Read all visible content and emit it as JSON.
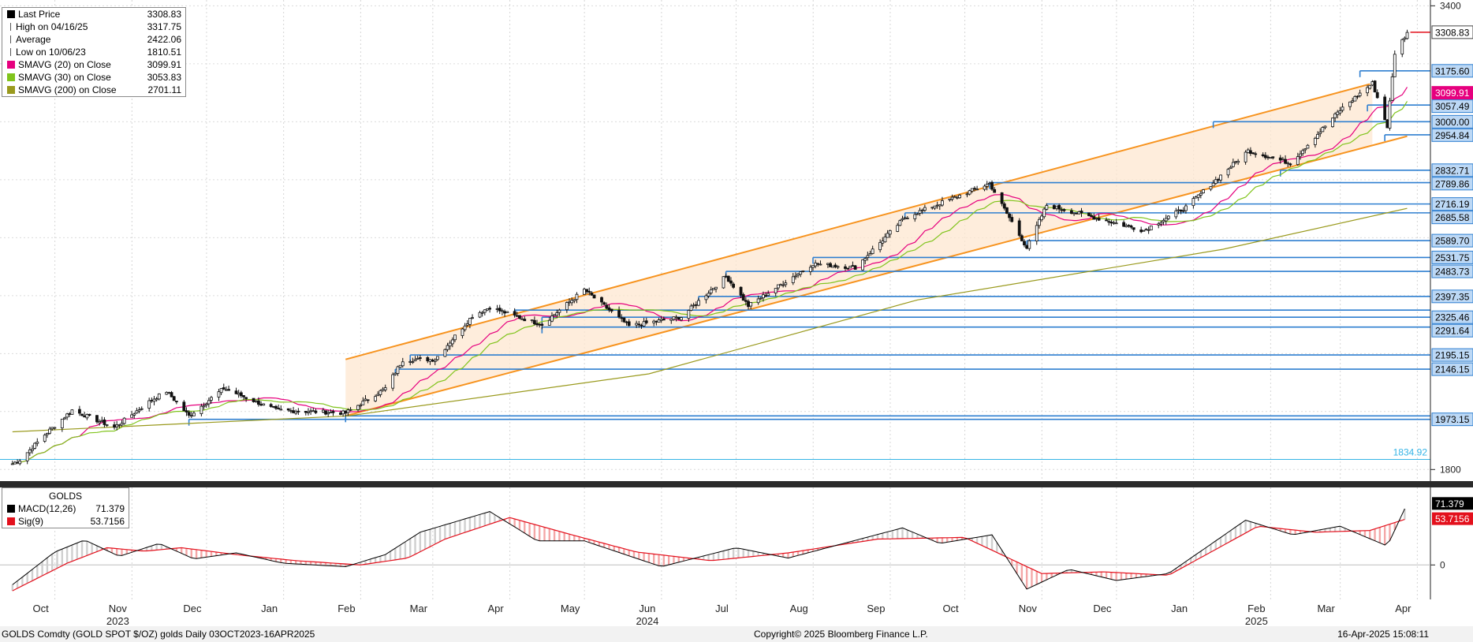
{
  "chart_data": [
    {
      "type": "candlestick",
      "title": "GOLDS",
      "ylim": [
        1760,
        3420
      ],
      "y_ticks": [
        1800,
        3400
      ],
      "y_tick_labels": [
        "1800",
        "3400"
      ],
      "x_date_range": [
        "2023-10-03",
        "2025-04-16"
      ],
      "month_ticks": [
        {
          "date": "2023-10-15",
          "label": "Oct",
          "year": ""
        },
        {
          "date": "2023-11-15",
          "label": "Nov",
          "year": "2023"
        },
        {
          "date": "2023-12-15",
          "label": "Dec",
          "year": ""
        },
        {
          "date": "2024-01-15",
          "label": "Jan",
          "year": ""
        },
        {
          "date": "2024-02-15",
          "label": "Feb",
          "year": ""
        },
        {
          "date": "2024-03-15",
          "label": "Mar",
          "year": ""
        },
        {
          "date": "2024-04-15",
          "label": "Apr",
          "year": ""
        },
        {
          "date": "2024-05-15",
          "label": "May",
          "year": ""
        },
        {
          "date": "2024-06-15",
          "label": "Jun",
          "year": "2024"
        },
        {
          "date": "2024-07-15",
          "label": "Jul",
          "year": ""
        },
        {
          "date": "2024-08-15",
          "label": "Aug",
          "year": ""
        },
        {
          "date": "2024-09-15",
          "label": "Sep",
          "year": ""
        },
        {
          "date": "2024-10-15",
          "label": "Oct",
          "year": ""
        },
        {
          "date": "2024-11-15",
          "label": "Nov",
          "year": ""
        },
        {
          "date": "2024-12-15",
          "label": "Dec",
          "year": ""
        },
        {
          "date": "2025-01-15",
          "label": "Jan",
          "year": ""
        },
        {
          "date": "2025-02-15",
          "label": "Feb",
          "year": "2025"
        },
        {
          "date": "2025-03-15",
          "label": "Mar",
          "year": ""
        },
        {
          "date": "2025-04-15",
          "label": "Apr",
          "year": ""
        }
      ],
      "price_path": [
        {
          "date": "2023-10-03",
          "close": 1820
        },
        {
          "date": "2023-10-06",
          "close": 1833
        },
        {
          "date": "2023-10-16",
          "close": 1920
        },
        {
          "date": "2023-10-27",
          "close": 2005
        },
        {
          "date": "2023-11-13",
          "close": 1945
        },
        {
          "date": "2023-11-28",
          "close": 2040
        },
        {
          "date": "2023-12-04",
          "close": 2070
        },
        {
          "date": "2023-12-13",
          "close": 1985
        },
        {
          "date": "2023-12-27",
          "close": 2080
        },
        {
          "date": "2024-01-17",
          "close": 2005
        },
        {
          "date": "2024-02-14",
          "close": 1995
        },
        {
          "date": "2024-03-01",
          "close": 2080
        },
        {
          "date": "2024-03-08",
          "close": 2178
        },
        {
          "date": "2024-03-21",
          "close": 2180
        },
        {
          "date": "2024-04-05",
          "close": 2330
        },
        {
          "date": "2024-04-12",
          "close": 2360
        },
        {
          "date": "2024-04-22",
          "close": 2330
        },
        {
          "date": "2024-05-03",
          "close": 2300
        },
        {
          "date": "2024-05-20",
          "close": 2420
        },
        {
          "date": "2024-06-07",
          "close": 2295
        },
        {
          "date": "2024-06-28",
          "close": 2326
        },
        {
          "date": "2024-07-16",
          "close": 2467
        },
        {
          "date": "2024-07-25",
          "close": 2365
        },
        {
          "date": "2024-08-20",
          "close": 2510
        },
        {
          "date": "2024-09-06",
          "close": 2497
        },
        {
          "date": "2024-09-26",
          "close": 2670
        },
        {
          "date": "2024-10-30",
          "close": 2787
        },
        {
          "date": "2024-11-14",
          "close": 2565
        },
        {
          "date": "2024-11-22",
          "close": 2712
        },
        {
          "date": "2024-12-31",
          "close": 2625
        },
        {
          "date": "2025-01-17",
          "close": 2705
        },
        {
          "date": "2025-02-11",
          "close": 2900
        },
        {
          "date": "2025-02-28",
          "close": 2857
        },
        {
          "date": "2025-03-20",
          "close": 3040
        },
        {
          "date": "2025-04-02",
          "close": 3133
        },
        {
          "date": "2025-04-08",
          "close": 2983
        },
        {
          "date": "2025-04-11",
          "close": 3237
        },
        {
          "date": "2025-04-16",
          "close": 3308.83
        }
      ],
      "series": [
        {
          "name": "Last Price",
          "last": 3308.83,
          "color": "#000000"
        },
        {
          "name": "SMAVG (20)  on Close",
          "last": 3099.91,
          "color": "#e6007e"
        },
        {
          "name": "SMAVG (30)  on Close",
          "last": 3053.83,
          "color": "#80c41c"
        },
        {
          "name": "SMAVG (200)  on Close",
          "last": 2701.11,
          "color": "#9a9a1e"
        }
      ],
      "sma200_path": [
        {
          "date": "2023-10-03",
          "value": 1930
        },
        {
          "date": "2024-02-15",
          "value": 1985
        },
        {
          "date": "2024-06-15",
          "value": 2130
        },
        {
          "date": "2024-10-01",
          "value": 2385
        },
        {
          "date": "2025-02-01",
          "value": 2560
        },
        {
          "date": "2025-04-16",
          "value": 2701.11
        }
      ],
      "legend": {
        "position": "top-left",
        "rows": [
          {
            "kind": "square",
            "label": "Last Price",
            "value": "3308.83",
            "color": "#000000"
          },
          {
            "kind": "high",
            "label": "High on 04/16/25",
            "value": "3317.75",
            "color": "#555555"
          },
          {
            "kind": "avg",
            "label": "Average",
            "value": "2422.06",
            "color": "#555555"
          },
          {
            "kind": "low",
            "label": "Low on 10/06/23",
            "value": "1810.51",
            "color": "#555555"
          },
          {
            "kind": "square",
            "label": "SMAVG (20)  on Close",
            "value": "3099.91",
            "color": "#e6007e"
          },
          {
            "kind": "square",
            "label": "SMAVG (30)  on Close",
            "value": "3053.83",
            "color": "#80c41c"
          },
          {
            "kind": "square",
            "label": "SMAVG (200)  on Close",
            "value": "2701.11",
            "color": "#9a9a1e"
          }
        ]
      },
      "price_tags": [
        {
          "value": "3308.83",
          "y": 3308.83,
          "style": "last"
        },
        {
          "value": "3175.60",
          "y": 3175.6,
          "style": "level"
        },
        {
          "value": "3099.91",
          "y": 3099.91,
          "style": "sma20"
        },
        {
          "value": "3057.49",
          "y": 3057.49,
          "style": "level"
        },
        {
          "value": "3000.00",
          "y": 3000.0,
          "style": "level"
        },
        {
          "value": "2954.84",
          "y": 2954.84,
          "style": "level"
        },
        {
          "value": "2832.71",
          "y": 2832.71,
          "style": "level"
        },
        {
          "value": "2789.86",
          "y": 2789.86,
          "style": "level"
        },
        {
          "value": "2716.19",
          "y": 2716.19,
          "style": "level"
        },
        {
          "value": "2685.58",
          "y": 2685.58,
          "style": "level"
        },
        {
          "value": "2589.70",
          "y": 2589.7,
          "style": "level"
        },
        {
          "value": "2531.75",
          "y": 2531.75,
          "style": "level"
        },
        {
          "value": "2483.73",
          "y": 2483.73,
          "style": "level"
        },
        {
          "value": "2397.35",
          "y": 2397.35,
          "style": "level"
        },
        {
          "value": "2325.46",
          "y": 2325.46,
          "style": "level"
        },
        {
          "value": "2291.64",
          "y": 2291.64,
          "style": "level"
        },
        {
          "value": "2195.15",
          "y": 2195.15,
          "style": "level"
        },
        {
          "value": "2146.15",
          "y": 2146.15,
          "style": "level"
        },
        {
          "value": "1973.15",
          "y": 1973.15,
          "style": "level"
        }
      ],
      "support_lines": [
        {
          "y": 3175.6,
          "from": "2025-03-28"
        },
        {
          "y": 3057.49,
          "from": "2025-03-31"
        },
        {
          "y": 3000.0,
          "from": "2025-01-28"
        },
        {
          "y": 2954.84,
          "from": "2025-04-07"
        },
        {
          "y": 2832.71,
          "from": "2025-02-24"
        },
        {
          "y": 2789.86,
          "from": "2024-10-30"
        },
        {
          "y": 2716.19,
          "from": "2024-11-22"
        },
        {
          "y": 2685.58,
          "from": "2024-09-26"
        },
        {
          "y": 2589.7,
          "from": "2024-11-14"
        },
        {
          "y": 2531.75,
          "from": "2024-08-20"
        },
        {
          "y": 2483.73,
          "from": "2024-07-16"
        },
        {
          "y": 2397.35,
          "from": "2024-07-05"
        },
        {
          "y": 2350.0,
          "from": "2024-04-22"
        },
        {
          "y": 2325.46,
          "from": "2024-05-03"
        },
        {
          "y": 2291.64,
          "from": "2024-05-03"
        },
        {
          "y": 2195.15,
          "from": "2024-03-11"
        },
        {
          "y": 2146.15,
          "from": "2024-03-05"
        },
        {
          "y": 1985.0,
          "from": "2024-02-14"
        },
        {
          "y": 1973.15,
          "from": "2023-12-13"
        }
      ],
      "channel": {
        "upper": [
          {
            "date": "2024-02-14",
            "y": 2180
          },
          {
            "date": "2025-04-01",
            "y": 3130
          }
        ],
        "lower": [
          {
            "date": "2024-02-14",
            "y": 1985
          },
          {
            "date": "2025-04-16",
            "y": 2950
          }
        ]
      },
      "reference_line": {
        "value": "1834.92",
        "y": 1834.92
      }
    },
    {
      "type": "line",
      "title": "GOLDS",
      "ylim": [
        -40,
        90
      ],
      "y_ticks": [
        0
      ],
      "y_tick_labels": [
        "0"
      ],
      "series": [
        {
          "name": "MACD(12,26)",
          "last": "71.379",
          "color": "#000000",
          "path": [
            {
              "date": "2023-10-03",
              "value": -23
            },
            {
              "date": "2023-10-20",
              "value": 15
            },
            {
              "date": "2023-11-01",
              "value": 29
            },
            {
              "date": "2023-11-15",
              "value": 10
            },
            {
              "date": "2023-12-01",
              "value": 25
            },
            {
              "date": "2023-12-15",
              "value": 7
            },
            {
              "date": "2024-01-01",
              "value": 14
            },
            {
              "date": "2024-01-20",
              "value": 2
            },
            {
              "date": "2024-02-14",
              "value": -2
            },
            {
              "date": "2024-03-01",
              "value": 12
            },
            {
              "date": "2024-03-15",
              "value": 38
            },
            {
              "date": "2024-04-12",
              "value": 62
            },
            {
              "date": "2024-05-01",
              "value": 28
            },
            {
              "date": "2024-05-20",
              "value": 28
            },
            {
              "date": "2024-06-20",
              "value": -2
            },
            {
              "date": "2024-07-20",
              "value": 20
            },
            {
              "date": "2024-08-10",
              "value": 8
            },
            {
              "date": "2024-09-25",
              "value": 43
            },
            {
              "date": "2024-10-10",
              "value": 25
            },
            {
              "date": "2024-10-31",
              "value": 35
            },
            {
              "date": "2024-11-14",
              "value": -28
            },
            {
              "date": "2024-12-01",
              "value": -5
            },
            {
              "date": "2024-12-20",
              "value": -18
            },
            {
              "date": "2025-01-10",
              "value": -10
            },
            {
              "date": "2025-02-10",
              "value": 52
            },
            {
              "date": "2025-03-01",
              "value": 35
            },
            {
              "date": "2025-03-20",
              "value": 45
            },
            {
              "date": "2025-04-08",
              "value": 22
            },
            {
              "date": "2025-04-16",
              "value": 71.379
            }
          ]
        },
        {
          "name": "Sig(9)",
          "last": "53.7156",
          "color": "#e3101c",
          "path": [
            {
              "date": "2023-10-03",
              "value": -30
            },
            {
              "date": "2023-10-25",
              "value": 2
            },
            {
              "date": "2023-11-10",
              "value": 20
            },
            {
              "date": "2023-11-25",
              "value": 16
            },
            {
              "date": "2023-12-10",
              "value": 20
            },
            {
              "date": "2024-01-01",
              "value": 12
            },
            {
              "date": "2024-01-25",
              "value": 5
            },
            {
              "date": "2024-02-20",
              "value": 0
            },
            {
              "date": "2024-03-10",
              "value": 8
            },
            {
              "date": "2024-03-25",
              "value": 30
            },
            {
              "date": "2024-04-20",
              "value": 55
            },
            {
              "date": "2024-05-15",
              "value": 35
            },
            {
              "date": "2024-06-10",
              "value": 15
            },
            {
              "date": "2024-07-10",
              "value": 5
            },
            {
              "date": "2024-08-10",
              "value": 14
            },
            {
              "date": "2024-09-15",
              "value": 30
            },
            {
              "date": "2024-10-20",
              "value": 32
            },
            {
              "date": "2024-11-20",
              "value": -10
            },
            {
              "date": "2024-12-15",
              "value": -8
            },
            {
              "date": "2025-01-10",
              "value": -12
            },
            {
              "date": "2025-02-15",
              "value": 45
            },
            {
              "date": "2025-03-10",
              "value": 38
            },
            {
              "date": "2025-04-01",
              "value": 40
            },
            {
              "date": "2025-04-16",
              "value": 53.7156
            }
          ]
        }
      ],
      "legend": {
        "position": "top-left"
      }
    }
  ],
  "footer": {
    "left": "GOLDS Comdty (GOLD SPOT $/OZ) golds  Daily 03OCT2023-16APR2025",
    "center": "Copyright© 2025 Bloomberg Finance L.P.",
    "right": "16-Apr-2025 15:08:11"
  }
}
